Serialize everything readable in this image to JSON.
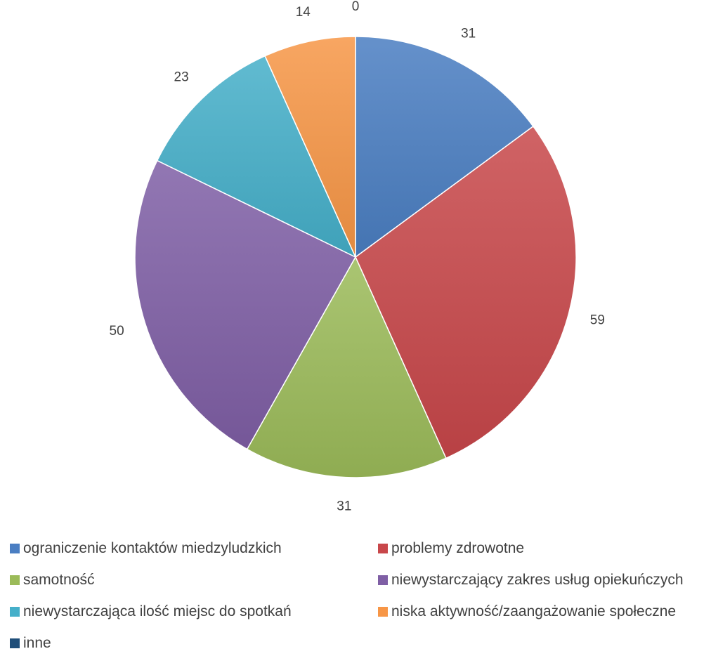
{
  "chart_data": {
    "type": "pie",
    "title": "",
    "categories": [
      "ograniczenie kontaktów miedzyludzkich",
      "problemy zdrowotne",
      "samotność",
      "niewystarczający zakres usług opiekuńczych",
      "niewystarczająca ilość miejsc do spotkań",
      "niska aktywność/zaangażowanie społeczne",
      "inne"
    ],
    "values": [
      31,
      59,
      31,
      50,
      23,
      14,
      0
    ],
    "colors": [
      "#4A7EC2",
      "#C8474A",
      "#9BBB59",
      "#7F5FA5",
      "#45AFC9",
      "#F79646",
      "#1F4E79"
    ],
    "legend_position": "bottom"
  }
}
